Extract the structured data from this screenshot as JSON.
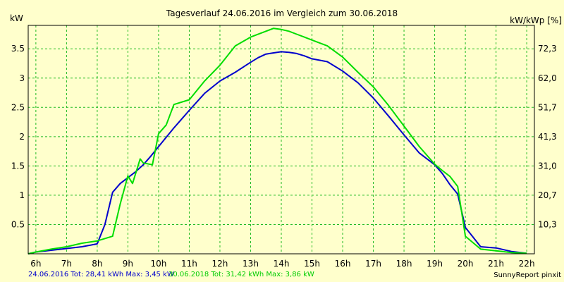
{
  "chart_data": {
    "type": "line",
    "title": "Tagesverlauf 24.06.2016 im Vergleich zum 30.06.2018",
    "y_left_unit": "kW",
    "y_right_unit": "kW/kWp [%]",
    "x_ticks": [
      "6h",
      "7h",
      "8h",
      "9h",
      "10h",
      "11h",
      "12h",
      "13h",
      "14h",
      "15h",
      "16h",
      "17h",
      "18h",
      "19h",
      "20h",
      "21h",
      "22h"
    ],
    "y_left_ticks": [
      "0.5",
      "1",
      "1.5",
      "2",
      "2.5",
      "3",
      "3.5"
    ],
    "y_right_ticks": [
      "10,3",
      "20,7",
      "31,0",
      "41,3",
      "51,7",
      "62,0",
      "72,3"
    ],
    "xlim": [
      5.75,
      22.25
    ],
    "ylim": [
      0,
      3.9
    ],
    "grid": true,
    "series": [
      {
        "name": "24.06.2016",
        "color": "#0000cc",
        "x": [
          5.75,
          6,
          6.5,
          7,
          7.5,
          8,
          8.25,
          8.5,
          8.75,
          9,
          9.25,
          9.5,
          9.75,
          10,
          10.5,
          11,
          11.5,
          12,
          12.5,
          13,
          13.25,
          13.5,
          13.75,
          14,
          14.25,
          14.5,
          14.75,
          15,
          15.5,
          16,
          16.5,
          17,
          17.5,
          18,
          18.5,
          19,
          19.25,
          19.5,
          19.75,
          20,
          20.5,
          21,
          21.5,
          22
        ],
        "values": [
          0,
          0.03,
          0.06,
          0.09,
          0.12,
          0.17,
          0.5,
          1.05,
          1.2,
          1.3,
          1.4,
          1.52,
          1.67,
          1.83,
          2.15,
          2.45,
          2.74,
          2.95,
          3.1,
          3.27,
          3.35,
          3.41,
          3.43,
          3.45,
          3.44,
          3.42,
          3.38,
          3.33,
          3.28,
          3.12,
          2.92,
          2.66,
          2.35,
          2.03,
          1.72,
          1.52,
          1.37,
          1.18,
          1.02,
          0.45,
          0.12,
          0.1,
          0.04,
          0.01
        ]
      },
      {
        "name": "30.06.2018",
        "color": "#00dd00",
        "x": [
          5.75,
          6,
          6.5,
          7,
          7.5,
          8,
          8.5,
          8.75,
          9,
          9.15,
          9.4,
          9.5,
          9.8,
          10,
          10.25,
          10.5,
          11,
          11.5,
          12,
          12.5,
          13,
          13.5,
          13.75,
          14,
          14.25,
          14.5,
          14.75,
          15,
          15.5,
          16,
          16.5,
          17,
          17.5,
          18,
          18.5,
          19,
          19.25,
          19.5,
          19.75,
          20,
          20.5,
          21,
          21.5,
          22
        ],
        "values": [
          0,
          0.03,
          0.08,
          0.12,
          0.18,
          0.22,
          0.3,
          0.85,
          1.33,
          1.2,
          1.62,
          1.55,
          1.52,
          2.05,
          2.2,
          2.55,
          2.63,
          2.95,
          3.22,
          3.55,
          3.7,
          3.8,
          3.85,
          3.83,
          3.8,
          3.75,
          3.7,
          3.65,
          3.55,
          3.36,
          3.1,
          2.85,
          2.53,
          2.18,
          1.83,
          1.53,
          1.42,
          1.32,
          1.15,
          0.3,
          0.08,
          0.05,
          0.02,
          0.01
        ]
      }
    ],
    "legend": [
      {
        "text": "24.06.2016 Tot: 28,41 kWh Max: 3,45 kW",
        "color": "#0000cc"
      },
      {
        "text": "30.06.2018 Tot: 31,42 kWh Max: 3,86 kW",
        "color": "#00dd00"
      }
    ],
    "credit": "SunnyReport pinxit"
  }
}
